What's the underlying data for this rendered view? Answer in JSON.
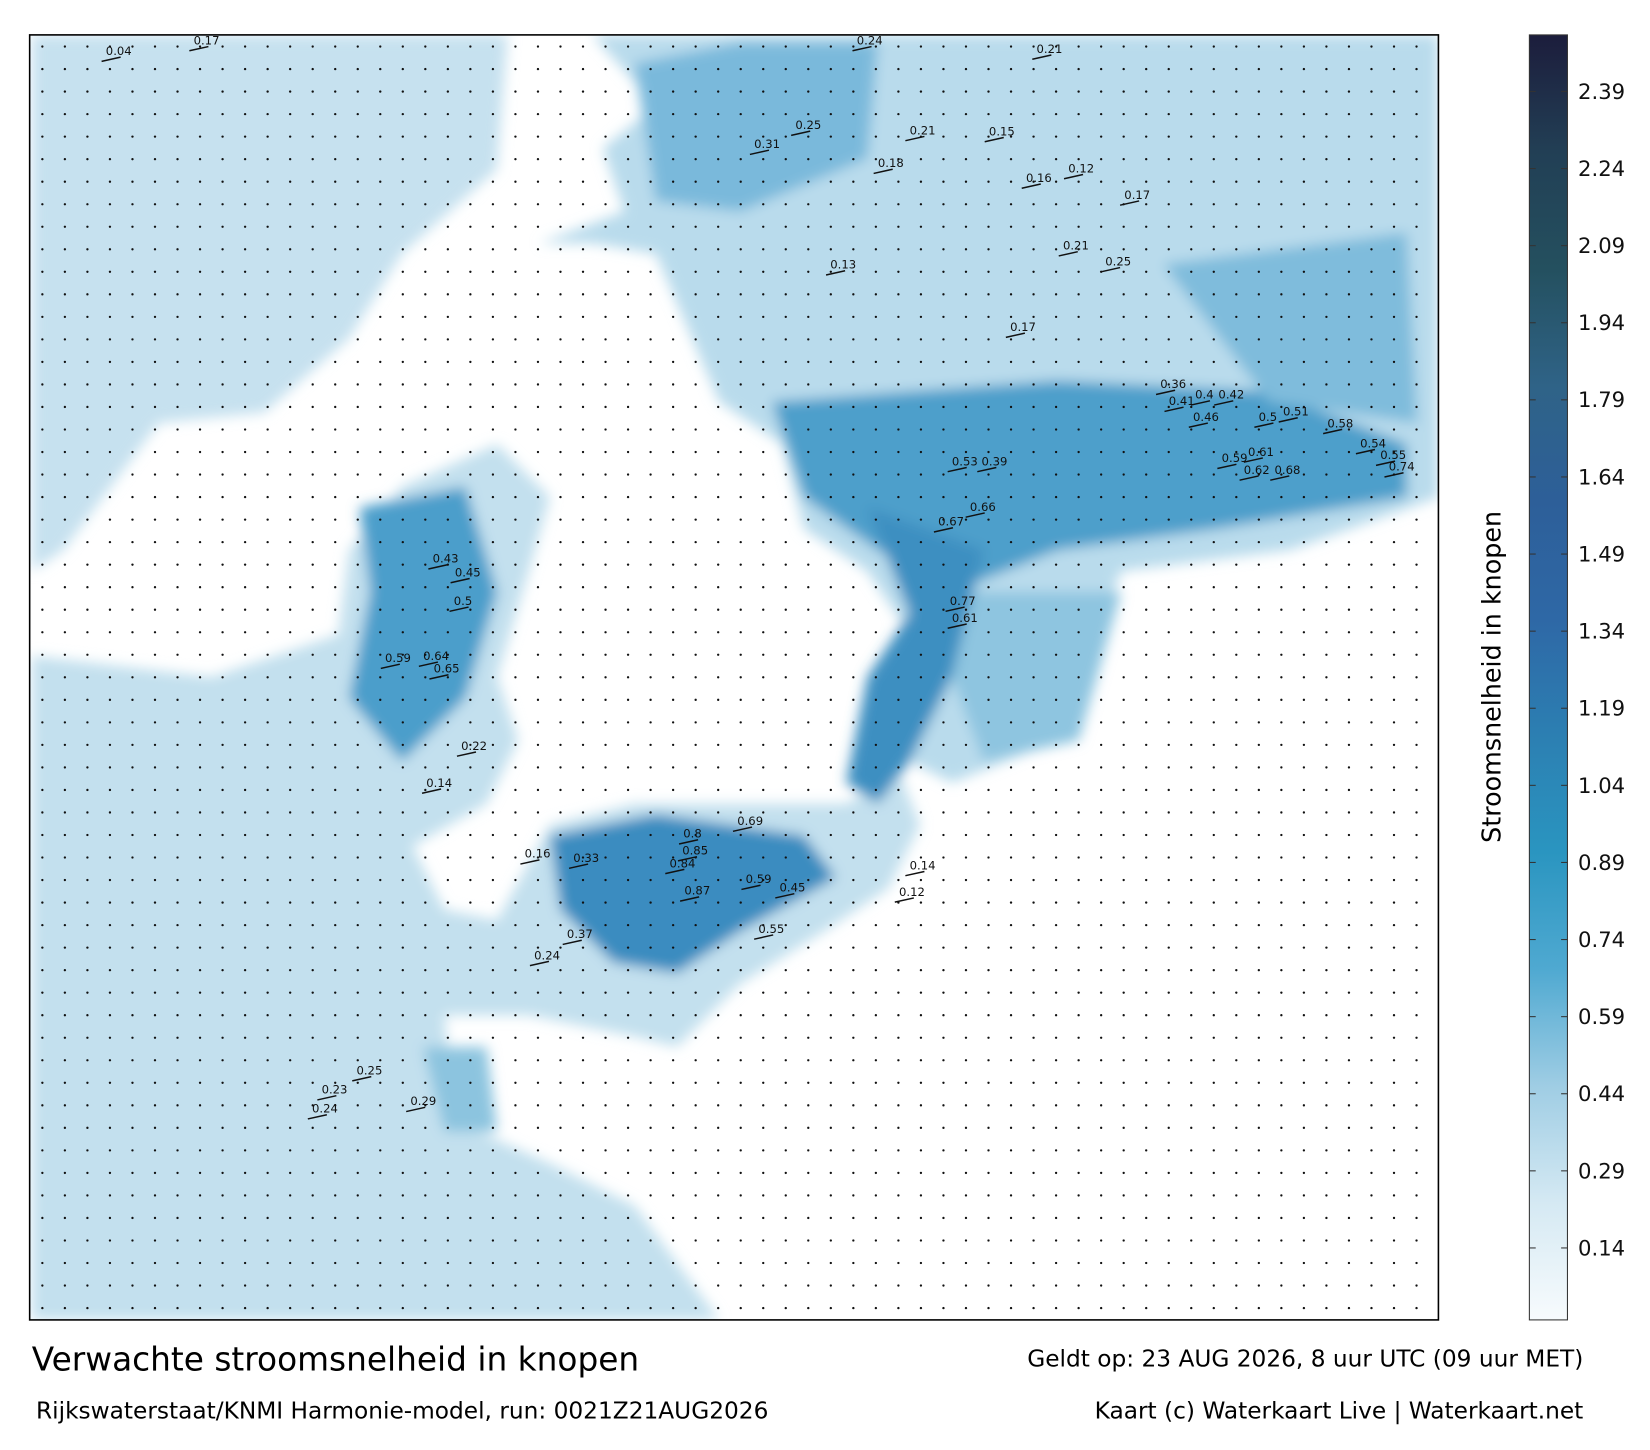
{
  "title": "Verwachte stroomsnelheid in knopen",
  "subtitle": "Rijkswaterstaat/KNMI Harmonie-model, run: 0021Z21AUG2026",
  "valid_time": "Geldt op: 23 AUG 2026, 8 uur UTC (09 uur MET)",
  "credit": "Kaart (c) Waterkaart Live | Waterkaart.net",
  "colorbar": {
    "label": "Stroomsnelheid in knopen",
    "clim": [
      0,
      2.5
    ],
    "ticks": [
      0.14,
      0.29,
      0.44,
      0.59,
      0.74,
      0.89,
      1.04,
      1.19,
      1.34,
      1.49,
      1.64,
      1.79,
      1.94,
      2.09,
      2.24,
      2.39
    ],
    "colors": [
      "#f7fbfd",
      "#d5e9f3",
      "#9fcde4",
      "#4fa9d1",
      "#2a95c0",
      "#2c7fb2",
      "#2e68a6",
      "#2d5f99",
      "#2f6387",
      "#24505f",
      "#223f55",
      "#1c1d3c"
    ]
  },
  "map": {
    "current_labels": [
      0.24,
      0.21,
      0.17,
      0.04,
      0.31,
      0.25,
      0.18,
      0.21,
      0.15,
      0.16,
      0.12,
      0.17,
      0.21,
      0.25,
      0.13,
      0.17,
      0.36,
      0.41,
      0.4,
      0.42,
      0.46,
      0.5,
      0.51,
      0.58,
      0.54,
      0.61,
      0.55,
      0.74,
      0.62,
      0.68,
      0.59,
      0.53,
      0.39,
      0.67,
      0.66,
      0.77,
      0.61,
      0.43,
      0.45,
      0.5,
      0.64,
      0.65,
      0.59,
      0.59,
      0.87,
      0.84,
      0.85,
      0.8,
      0.69,
      0.45,
      0.55,
      0.24,
      0.37,
      0.23,
      0.24,
      0.25,
      0.29,
      0.22,
      0.14,
      0.16,
      0.33,
      0.12,
      0.14
    ]
  }
}
